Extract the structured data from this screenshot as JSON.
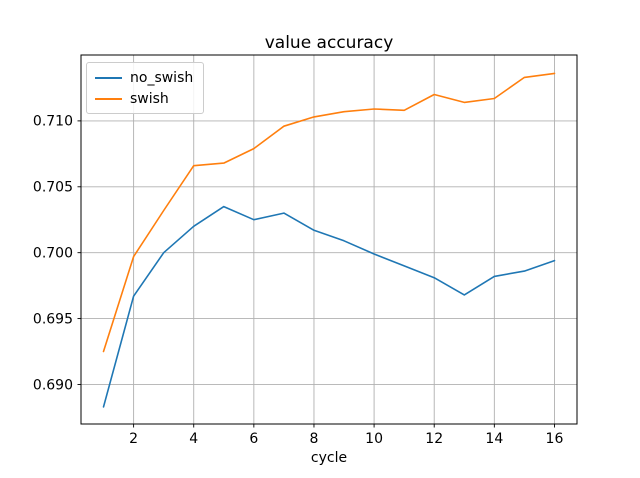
{
  "chart_data": {
    "type": "line",
    "title": "value accuracy",
    "xlabel": "cycle",
    "ylabel": "",
    "x": [
      1,
      2,
      3,
      4,
      5,
      6,
      7,
      8,
      9,
      10,
      11,
      12,
      13,
      14,
      15,
      16
    ],
    "series": [
      {
        "name": "no_swish",
        "color": "#1f77b4",
        "values": [
          0.6883,
          0.6967,
          0.7,
          0.702,
          0.7035,
          0.7025,
          0.703,
          0.7017,
          0.7009,
          0.6999,
          0.699,
          0.6981,
          0.6968,
          0.6982,
          0.6986,
          0.6994
        ]
      },
      {
        "name": "swish",
        "color": "#ff7f0e",
        "values": [
          0.6925,
          0.6997,
          0.7032,
          0.7066,
          0.7068,
          0.7079,
          0.7096,
          0.7103,
          0.7107,
          0.7109,
          0.7108,
          0.712,
          0.7114,
          0.7117,
          0.7133,
          0.7136
        ]
      }
    ],
    "xlim": [
      0.25,
      16.75
    ],
    "ylim": [
      0.687,
      0.715
    ],
    "xticks": [
      2,
      4,
      6,
      8,
      10,
      12,
      14,
      16
    ],
    "xtick_labels": [
      "2",
      "4",
      "6",
      "8",
      "10",
      "12",
      "14",
      "16"
    ],
    "yticks": [
      0.69,
      0.695,
      0.7,
      0.705,
      0.71
    ],
    "ytick_labels": [
      "0.690",
      "0.695",
      "0.700",
      "0.705",
      "0.710"
    ],
    "grid": true,
    "grid_color": "#b0b0b0",
    "spine_color": "#000000",
    "tick_color": "#000000",
    "background_color": "#ffffff",
    "legend": {
      "position": "upper left",
      "entries": [
        "no_swish",
        "swish"
      ]
    }
  }
}
